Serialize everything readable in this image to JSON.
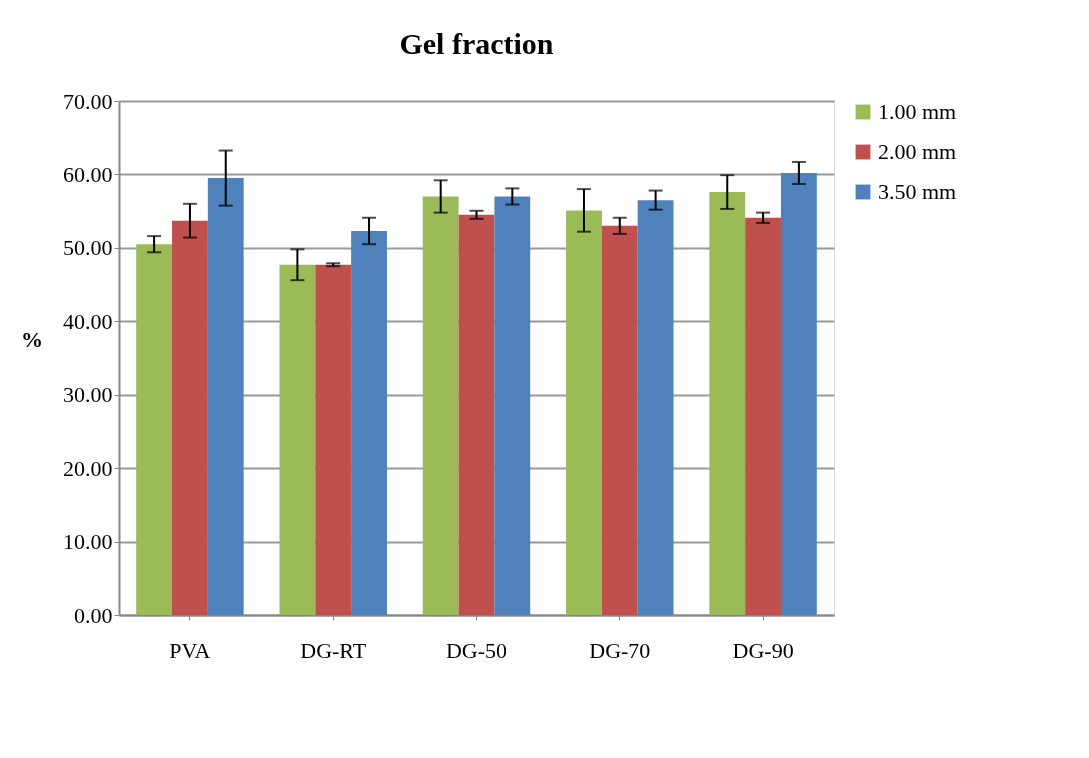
{
  "chart_data": {
    "type": "bar",
    "title": "Gel fraction",
    "ylabel": "%",
    "categories": [
      "PVA",
      "DG-RT",
      "DG-50",
      "DG-70",
      "DG-90"
    ],
    "series": [
      {
        "name": "1.00 mm",
        "color": "#9bbb59",
        "values": [
          50.5,
          47.7,
          57.0,
          55.1,
          57.6
        ],
        "errors": [
          1.1,
          2.1,
          2.2,
          2.9,
          2.3
        ]
      },
      {
        "name": "2.00 mm",
        "color": "#c0504d",
        "values": [
          53.7,
          47.7,
          54.5,
          53.0,
          54.1
        ],
        "errors": [
          2.3,
          0.2,
          0.55,
          1.1,
          0.7
        ]
      },
      {
        "name": "3.50 mm",
        "color": "#4f81bd",
        "values": [
          59.5,
          52.3,
          57.0,
          56.5,
          60.2
        ],
        "errors": [
          3.75,
          1.8,
          1.1,
          1.3,
          1.5
        ]
      }
    ],
    "ylim": [
      0,
      70
    ],
    "yticks": [
      {
        "value": 0,
        "label": "0.00"
      },
      {
        "value": 10,
        "label": "10.00"
      },
      {
        "value": 20,
        "label": "20.00"
      },
      {
        "value": 30,
        "label": "30.00"
      },
      {
        "value": 40,
        "label": "40.00"
      },
      {
        "value": 50,
        "label": "50.00"
      },
      {
        "value": 60,
        "label": "60.00"
      },
      {
        "value": 70,
        "label": "70.00"
      }
    ],
    "grid": "y",
    "legend": "right"
  }
}
